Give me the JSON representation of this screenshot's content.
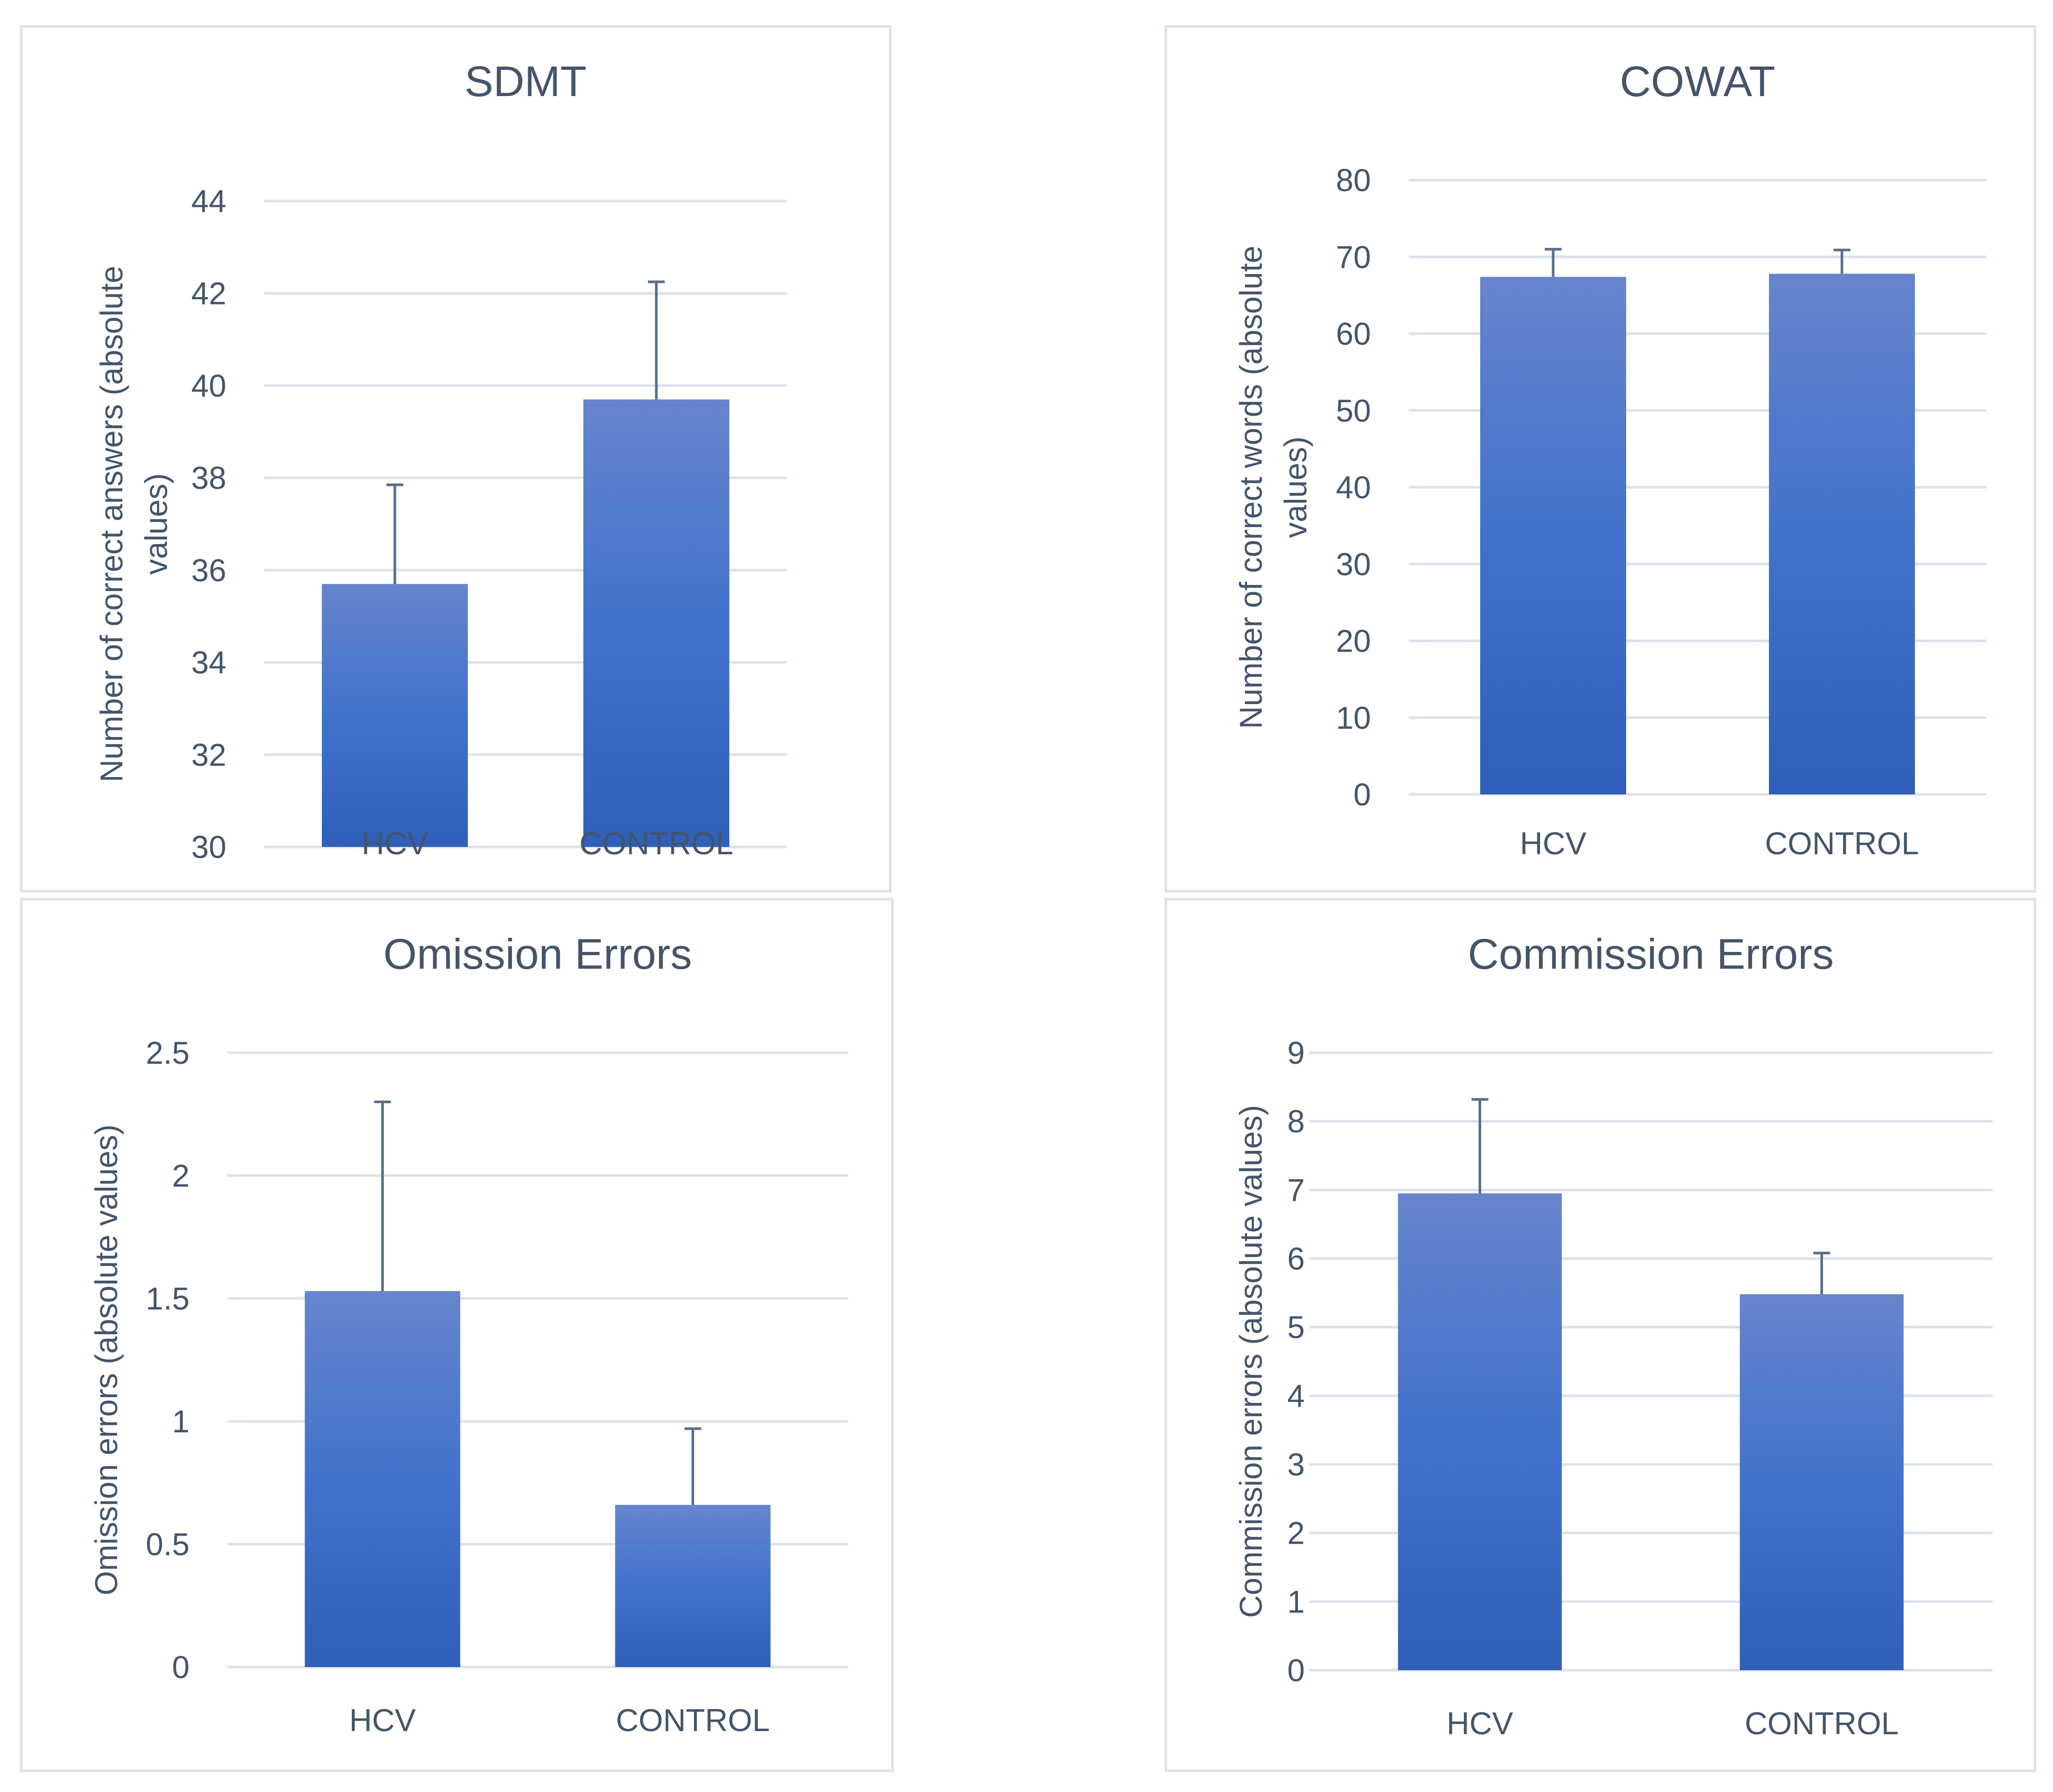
{
  "colors": {
    "bar_top": "#6685cd",
    "bar_mid": "#4272cc",
    "bar_bottom": "#2f5fb8",
    "grid": "#dde2ea",
    "error_bar": "#5a6e8c",
    "text": "#44546a",
    "frame": "#dde3ea"
  },
  "chart_data": [
    {
      "type": "bar",
      "title": "SDMT",
      "xlabel": "",
      "ylabel_lines": [
        "Number of correct answers (absolute",
        "values)"
      ],
      "categories": [
        "HCV",
        "CONTROL"
      ],
      "values": [
        35.7,
        39.7
      ],
      "error_upper": [
        37.85,
        42.25
      ],
      "ylim": [
        30,
        44
      ],
      "yticks": [
        30,
        32,
        34,
        36,
        38,
        40,
        42,
        44
      ],
      "ytick_labels": [
        "30",
        "32",
        "34",
        "36",
        "38",
        "40",
        "42",
        "44"
      ],
      "grid": true
    },
    {
      "type": "bar",
      "title": "COWAT",
      "xlabel": "",
      "ylabel_lines": [
        "Number of correct words (absolute",
        "values)"
      ],
      "categories": [
        "HCV",
        "CONTROL"
      ],
      "values": [
        67.4,
        67.8
      ],
      "error_upper": [
        71.0,
        70.9
      ],
      "ylim": [
        0,
        80
      ],
      "yticks": [
        0,
        10,
        20,
        30,
        40,
        50,
        60,
        70,
        80
      ],
      "ytick_labels": [
        "0",
        "10",
        "20",
        "30",
        "40",
        "50",
        "60",
        "70",
        "80"
      ],
      "grid": true
    },
    {
      "type": "bar",
      "title": "Omission Errors",
      "xlabel": "",
      "ylabel_lines": [
        "Omission errors (absolute values)"
      ],
      "categories": [
        "HCV",
        "CONTROL"
      ],
      "values": [
        1.53,
        0.66
      ],
      "error_upper": [
        2.3,
        0.97
      ],
      "ylim": [
        0,
        2.5
      ],
      "yticks": [
        0,
        0.5,
        1,
        1.5,
        2,
        2.5
      ],
      "ytick_labels": [
        "0",
        "0.5",
        "1",
        "1.5",
        "2",
        "2.5"
      ],
      "grid": true
    },
    {
      "type": "bar",
      "title": "Commission Errors",
      "xlabel": "",
      "ylabel_lines": [
        "Commission errors (absolute values)"
      ],
      "categories": [
        "HCV",
        "CONTROL"
      ],
      "values": [
        6.95,
        5.48
      ],
      "error_upper": [
        8.32,
        6.08
      ],
      "ylim": [
        0,
        9
      ],
      "yticks": [
        0,
        1,
        2,
        3,
        4,
        5,
        6,
        7,
        8,
        9
      ],
      "ytick_labels": [
        "0",
        "1",
        "2",
        "3",
        "4",
        "5",
        "6",
        "7",
        "8",
        "9"
      ],
      "grid": true
    }
  ]
}
